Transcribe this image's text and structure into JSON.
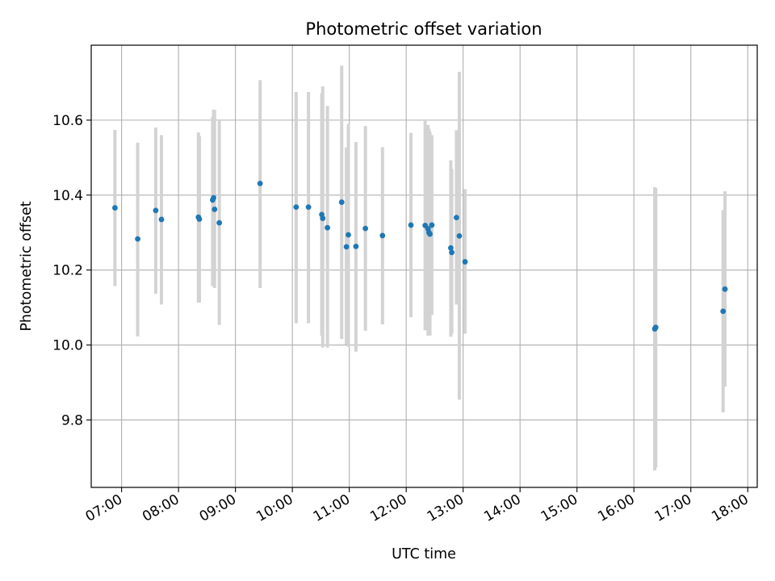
{
  "chart_data": {
    "type": "scatter",
    "title": "Photometric offset variation",
    "xlabel": "UTC time",
    "ylabel": "Photometric offset",
    "x_ticks": [
      "07:00",
      "08:00",
      "09:00",
      "10:00",
      "11:00",
      "12:00",
      "13:00",
      "14:00",
      "15:00",
      "16:00",
      "17:00",
      "18:00"
    ],
    "y_ticks": [
      "9.8",
      "10.0",
      "10.2",
      "10.4",
      "10.6"
    ],
    "xlim": [
      "06:28",
      "18:10"
    ],
    "ylim": [
      9.62,
      10.8
    ],
    "grid": true,
    "colors": {
      "point": "#1f77b4",
      "errorbar": "#d3d3d3",
      "grid": "#b0b0b0"
    },
    "points": [
      {
        "x": "06:53",
        "y": 10.366,
        "err_low": 10.157,
        "err_high": 10.574
      },
      {
        "x": "07:17",
        "y": 10.283,
        "err_low": 10.023,
        "err_high": 10.54
      },
      {
        "x": "07:36",
        "y": 10.359,
        "err_low": 10.137,
        "err_high": 10.58
      },
      {
        "x": "07:42",
        "y": 10.335,
        "err_low": 10.108,
        "err_high": 10.56
      },
      {
        "x": "08:21",
        "y": 10.341,
        "err_low": 10.113,
        "err_high": 10.567
      },
      {
        "x": "08:22",
        "y": 10.336,
        "err_low": 10.113,
        "err_high": 10.557
      },
      {
        "x": "08:36",
        "y": 10.387,
        "err_low": 10.157,
        "err_high": 10.609
      },
      {
        "x": "08:37",
        "y": 10.393,
        "err_low": 10.16,
        "err_high": 10.628
      },
      {
        "x": "08:38",
        "y": 10.362,
        "err_low": 10.152,
        "err_high": 10.627
      },
      {
        "x": "08:43",
        "y": 10.326,
        "err_low": 10.054,
        "err_high": 10.598
      },
      {
        "x": "09:26",
        "y": 10.431,
        "err_low": 10.152,
        "err_high": 10.707
      },
      {
        "x": "10:04",
        "y": 10.368,
        "err_low": 10.058,
        "err_high": 10.675
      },
      {
        "x": "10:17",
        "y": 10.368,
        "err_low": 10.058,
        "err_high": 10.675
      },
      {
        "x": "10:31",
        "y": 10.348,
        "err_low": 10.025,
        "err_high": 10.672
      },
      {
        "x": "10:32",
        "y": 10.338,
        "err_low": 9.993,
        "err_high": 10.69
      },
      {
        "x": "10:37",
        "y": 10.313,
        "err_low": 9.993,
        "err_high": 10.638
      },
      {
        "x": "10:52",
        "y": 10.381,
        "err_low": 10.016,
        "err_high": 10.745
      },
      {
        "x": "10:57",
        "y": 10.262,
        "err_low": 10.001,
        "err_high": 10.527
      },
      {
        "x": "10:59",
        "y": 10.294,
        "err_low": 9.995,
        "err_high": 10.59
      },
      {
        "x": "11:07",
        "y": 10.263,
        "err_low": 9.982,
        "err_high": 10.542
      },
      {
        "x": "11:17",
        "y": 10.311,
        "err_low": 10.038,
        "err_high": 10.584
      },
      {
        "x": "11:35",
        "y": 10.292,
        "err_low": 10.055,
        "err_high": 10.528
      },
      {
        "x": "12:05",
        "y": 10.32,
        "err_low": 10.074,
        "err_high": 10.566
      },
      {
        "x": "12:20",
        "y": 10.319,
        "err_low": 10.039,
        "err_high": 10.598
      },
      {
        "x": "12:23",
        "y": 10.31,
        "err_low": 10.025,
        "err_high": 10.587
      },
      {
        "x": "12:24",
        "y": 10.3,
        "err_low": 10.03,
        "err_high": 10.577
      },
      {
        "x": "12:25",
        "y": 10.296,
        "err_low": 10.025,
        "err_high": 10.57
      },
      {
        "x": "12:27",
        "y": 10.32,
        "err_low": 10.08,
        "err_high": 10.56
      },
      {
        "x": "12:47",
        "y": 10.259,
        "err_low": 10.022,
        "err_high": 10.493
      },
      {
        "x": "12:48",
        "y": 10.247,
        "err_low": 10.03,
        "err_high": 10.47
      },
      {
        "x": "12:53",
        "y": 10.34,
        "err_low": 10.108,
        "err_high": 10.573
      },
      {
        "x": "12:56",
        "y": 10.291,
        "err_low": 9.854,
        "err_high": 10.729
      },
      {
        "x": "13:02",
        "y": 10.222,
        "err_low": 10.03,
        "err_high": 10.416
      },
      {
        "x": "16:22",
        "y": 10.043,
        "err_low": 9.665,
        "err_high": 10.421
      },
      {
        "x": "16:23",
        "y": 10.047,
        "err_low": 9.673,
        "err_high": 10.419
      },
      {
        "x": "17:34",
        "y": 10.09,
        "err_low": 9.82,
        "err_high": 10.36
      },
      {
        "x": "17:36",
        "y": 10.149,
        "err_low": 9.889,
        "err_high": 10.41
      }
    ]
  }
}
